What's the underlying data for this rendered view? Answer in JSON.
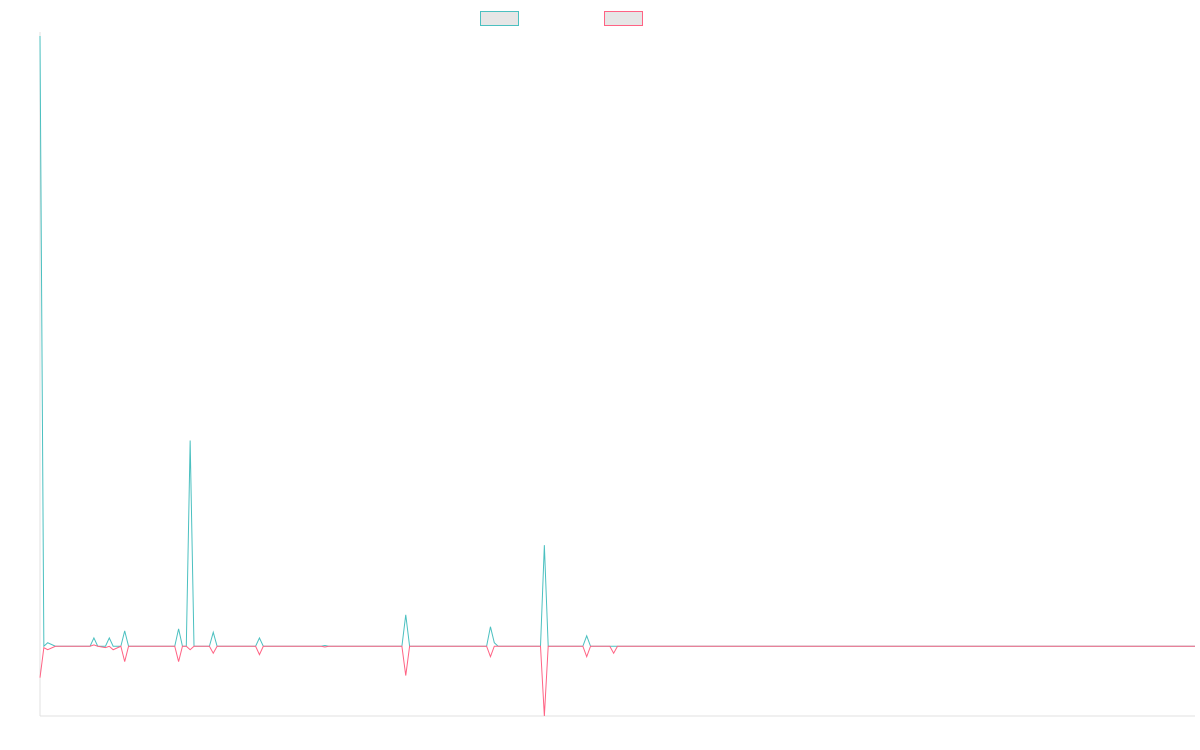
{
  "chart_data": {
    "type": "line",
    "title": "",
    "xlabel": "",
    "ylabel": "",
    "grid": false,
    "legend_placement": "top-center",
    "xlim": [
      0,
      300
    ],
    "ylim": [
      -1,
      8.75
    ],
    "series": [
      {
        "name": "",
        "color": "#4bc0c0",
        "points": [
          [
            0,
            8.75
          ],
          [
            1,
            0
          ],
          [
            2,
            0.05
          ],
          [
            4,
            0
          ],
          [
            5,
            0
          ],
          [
            13,
            0
          ],
          [
            14,
            0.12
          ],
          [
            15,
            0
          ],
          [
            17,
            0
          ],
          [
            18,
            0.12
          ],
          [
            19,
            0
          ],
          [
            21,
            0
          ],
          [
            22,
            0.22
          ],
          [
            23,
            0
          ],
          [
            35,
            0
          ],
          [
            36,
            0.25
          ],
          [
            37,
            0
          ],
          [
            38,
            0
          ],
          [
            39,
            2.95
          ],
          [
            40,
            0
          ],
          [
            44,
            0
          ],
          [
            45,
            0.2
          ],
          [
            46,
            0
          ],
          [
            56,
            0
          ],
          [
            57,
            0.12
          ],
          [
            58,
            0
          ],
          [
            73,
            0
          ],
          [
            74,
            0.01
          ],
          [
            75,
            0
          ],
          [
            94,
            0
          ],
          [
            95,
            0.45
          ],
          [
            96,
            0
          ],
          [
            116,
            0
          ],
          [
            117,
            0.28
          ],
          [
            118,
            0.05
          ],
          [
            119,
            0
          ],
          [
            130,
            0
          ],
          [
            131,
            1.45
          ],
          [
            132,
            0
          ],
          [
            141,
            0
          ],
          [
            142,
            0.15
          ],
          [
            143,
            0
          ],
          [
            300,
            0
          ]
        ]
      },
      {
        "name": "",
        "color": "#ff6384",
        "points": [
          [
            0,
            -0.45
          ],
          [
            1,
            -0.02
          ],
          [
            2,
            -0.05
          ],
          [
            4,
            0
          ],
          [
            5,
            0
          ],
          [
            13,
            0
          ],
          [
            14,
            0.02
          ],
          [
            15,
            0
          ],
          [
            17,
            -0.02
          ],
          [
            18,
            0
          ],
          [
            19,
            -0.05
          ],
          [
            21,
            0
          ],
          [
            22,
            -0.22
          ],
          [
            23,
            0
          ],
          [
            35,
            0
          ],
          [
            36,
            -0.22
          ],
          [
            37,
            0
          ],
          [
            38,
            0
          ],
          [
            39,
            -0.05
          ],
          [
            40,
            0
          ],
          [
            44,
            0
          ],
          [
            45,
            -0.1
          ],
          [
            46,
            0
          ],
          [
            56,
            0
          ],
          [
            57,
            -0.12
          ],
          [
            58,
            0
          ],
          [
            73,
            0
          ],
          [
            74,
            -0.01
          ],
          [
            75,
            0
          ],
          [
            94,
            0
          ],
          [
            95,
            -0.42
          ],
          [
            96,
            0
          ],
          [
            116,
            0
          ],
          [
            117,
            -0.15
          ],
          [
            118,
            0
          ],
          [
            130,
            0
          ],
          [
            131,
            -1.0
          ],
          [
            132,
            0
          ],
          [
            141,
            0
          ],
          [
            142,
            -0.15
          ],
          [
            143,
            0
          ],
          [
            148,
            0
          ],
          [
            149,
            -0.1
          ],
          [
            150,
            0
          ],
          [
            300,
            0
          ]
        ]
      }
    ]
  }
}
